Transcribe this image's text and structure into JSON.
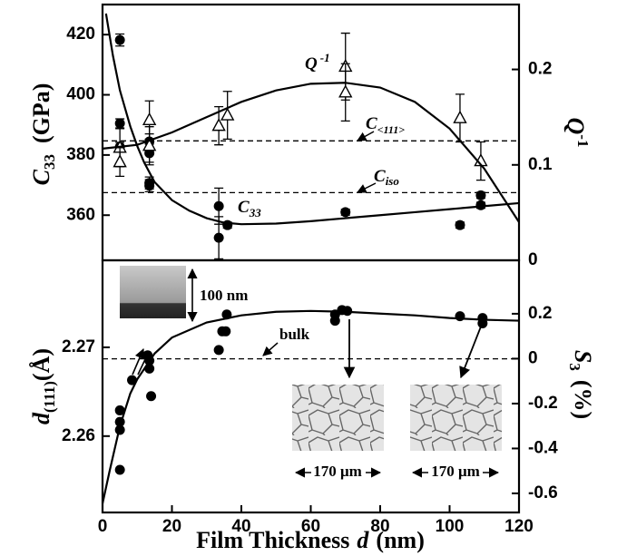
{
  "chart_data": [
    {
      "type": "scatter",
      "xlim": [
        0,
        120
      ],
      "ylim": [
        345,
        430
      ],
      "yticks": [
        360,
        380,
        400,
        420
      ],
      "y2lim": [
        0,
        0.268
      ],
      "y2ticks": [
        0,
        0.1,
        0.2
      ],
      "y_label": {
        "symbol": "C",
        "sub": "33",
        "unit": "(GPa)"
      },
      "y2_label": {
        "symbol": "Q",
        "sup": "-1"
      },
      "annotations": [
        {
          "symbol": "Q",
          "sup": "-1"
        },
        {
          "symbol": "C",
          "sub": "<111>"
        },
        {
          "symbol": "C",
          "sub": "iso"
        },
        {
          "symbol": "C",
          "sub": "33"
        }
      ],
      "reference_lines": [
        384.7,
        367.5
      ],
      "series": [
        {
          "marker": "circle",
          "color": "#000000",
          "x": [
            5,
            5,
            5,
            13.5,
            13.5,
            13.5,
            13.5,
            33.5,
            33.5,
            36,
            70,
            103,
            109,
            109
          ],
          "values": [
            418.2,
            390.5,
            382.7,
            384.5,
            380.6,
            370.7,
            369.8,
            363,
            352.5,
            356.7,
            361,
            356.7,
            366.6,
            363.3
          ],
          "errors": [
            2,
            1.5,
            1.5,
            2.5,
            3,
            2,
            2,
            6,
            7,
            1,
            1,
            1,
            1,
            1
          ]
        },
        {
          "marker": "none",
          "color": "#000000",
          "x": [
            1,
            2,
            3,
            5,
            8,
            10,
            12,
            15,
            20,
            25,
            30,
            35,
            40,
            50,
            60,
            70,
            80,
            90,
            100,
            110,
            120
          ],
          "values": [
            427,
            420,
            413,
            401.5,
            389.5,
            383,
            377.5,
            371,
            365,
            361.5,
            359,
            357.5,
            357,
            357.2,
            358,
            359,
            360,
            361,
            362,
            363,
            364
          ]
        },
        {
          "marker": "triangle",
          "color": "#000000",
          "axis": "y2",
          "x": [
            5,
            5,
            13.5,
            13.5,
            33.5,
            36,
            70,
            70,
            103,
            109
          ],
          "values": [
            0.118,
            0.103,
            0.147,
            0.12,
            0.141,
            0.152,
            0.203,
            0.176,
            0.149,
            0.104
          ],
          "errors": [
            0.02,
            0.015,
            0.02,
            0.02,
            0.02,
            0.025,
            0.035,
            0.03,
            0.025,
            0.02
          ]
        },
        {
          "marker": "none",
          "color": "#000000",
          "axis": "y2",
          "x": [
            0,
            10,
            20,
            30,
            40,
            50,
            60,
            70,
            80,
            90,
            100,
            110,
            120
          ],
          "values": [
            0.117,
            0.121,
            0.134,
            0.15,
            0.166,
            0.178,
            0.185,
            0.186,
            0.181,
            0.166,
            0.138,
            0.096,
            0.04
          ]
        }
      ]
    },
    {
      "type": "scatter",
      "xlim": [
        0,
        120
      ],
      "xticks": [
        0,
        20,
        40,
        60,
        80,
        100,
        120
      ],
      "ylim": [
        2.2514,
        2.2798
      ],
      "yticks": [
        2.26,
        2.27
      ],
      "y2lim": [
        -0.685,
        0.438
      ],
      "y2ticks": [
        -0.6,
        -0.4,
        -0.2,
        0,
        0.2
      ],
      "x_label": {
        "text": "Film Thickness",
        "symbol": "d",
        "unit": "(nm)"
      },
      "y_label": {
        "symbol": "d",
        "sub": "(111)",
        "unit": "(Å)"
      },
      "y2_label": {
        "symbol": "S",
        "sub": "3",
        "unit": "(%)"
      },
      "annotations": [
        "bulk",
        "100 nm",
        "170 μm",
        "170 μm"
      ],
      "reference_lines": [
        2.2687
      ],
      "series": [
        {
          "marker": "circle",
          "color": "#000000",
          "x": [
            5,
            5,
            5,
            5,
            8.5,
            13,
            13.5,
            13.5,
            14,
            33.5,
            34.5,
            35.5,
            35.8,
            67,
            67,
            69,
            70.5,
            103,
            109.5,
            109.5
          ],
          "values": [
            2.2629,
            2.2616,
            2.2607,
            2.2562,
            2.2663,
            2.2691,
            2.2685,
            2.2676,
            2.2645,
            2.2697,
            2.2718,
            2.2718,
            2.2737,
            2.273,
            2.2737,
            2.2742,
            2.2741,
            2.2735,
            2.2733,
            2.2727
          ]
        },
        {
          "marker": "none",
          "color": "#000000",
          "x": [
            0,
            2,
            5,
            8,
            10,
            15,
            20,
            30,
            40,
            50,
            60,
            70,
            80,
            90,
            100,
            110,
            120
          ],
          "values": [
            2.2524,
            2.256,
            2.2611,
            2.2648,
            2.2664,
            2.2693,
            2.2711,
            2.2728,
            2.2736,
            2.274,
            2.2741,
            2.274,
            2.2738,
            2.2736,
            2.2733,
            2.2731,
            2.273
          ]
        }
      ]
    }
  ]
}
